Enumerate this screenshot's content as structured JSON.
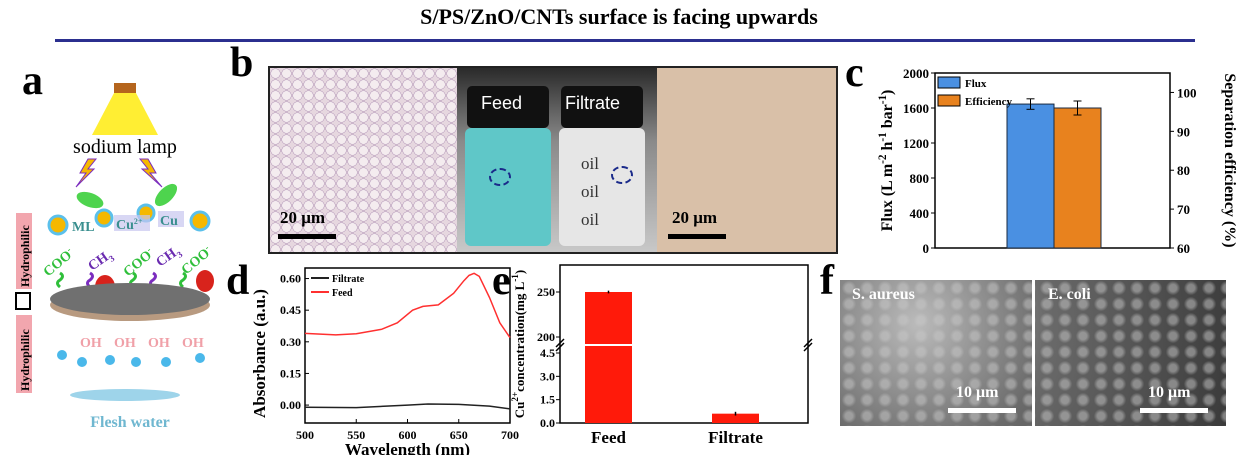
{
  "title": "S/PS/ZnO/CNTs surface is facing upwards",
  "panels": {
    "a": "a",
    "b": "b",
    "c": "c",
    "d": "d",
    "e": "e",
    "f": "f"
  },
  "panel_a": {
    "lamp": "sodium lamp",
    "ml": "ML",
    "cu1": "Cu",
    "cu1_sup": "2+",
    "cu2": "Cu",
    "coo": "COO",
    "coo_sup": "-",
    "ch3": "CH",
    "ch3_sub": "3",
    "oh": "OH",
    "hydrophilic": "Hydrophilic",
    "water": "Flesh water",
    "colors": {
      "coo": "#2fbf3a",
      "ch3": "#6a2bb0",
      "oh": "#f0a0a8",
      "water": "#6fb7d0"
    }
  },
  "panel_b": {
    "feed": "Feed",
    "filtrate": "Filtrate",
    "scale_left": "20 μm",
    "scale_right": "20 μm",
    "bottle_texts": [
      "oil",
      "oil",
      "oil"
    ]
  },
  "panel_f": {
    "left": "S. aureus",
    "right": "E. coli",
    "scale_left": "10 μm",
    "scale_right": "10 μm"
  },
  "chart_data": [
    {
      "id": "c",
      "type": "bar",
      "categories": [
        ""
      ],
      "series": [
        {
          "name": "Flux",
          "values": [
            1645
          ],
          "error": [
            60
          ],
          "axis": "left",
          "color": "#4a90e2"
        },
        {
          "name": "Efficiency",
          "values": [
            96
          ],
          "error": [
            1.8
          ],
          "axis": "right",
          "color": "#e8821e"
        }
      ],
      "ylabel": "Flux (L m-2 h-1 bar-1)",
      "ylabel_parts": [
        "Flux (L m",
        "-2",
        " h",
        "-1",
        " bar",
        "-1",
        ")"
      ],
      "y2label": "Separation efficiency (%)",
      "ylim": [
        0,
        2000
      ],
      "y2lim": [
        60,
        105
      ],
      "yticks": [
        0,
        400,
        800,
        1200,
        1600,
        2000
      ],
      "y2ticks": [
        60,
        70,
        80,
        90,
        100
      ],
      "legend": "top-left"
    },
    {
      "id": "d",
      "type": "line",
      "xlabel": "Wavelength (nm)",
      "ylabel": "Absorbance (a.u.)",
      "xlim": [
        500,
        700
      ],
      "ylim": [
        -0.085,
        0.65
      ],
      "xticks": [
        500,
        550,
        600,
        650,
        700
      ],
      "yticks": [
        "0.00",
        "0.15",
        "0.30",
        "0.45",
        "0.60"
      ],
      "series": [
        {
          "name": "Filtrate",
          "color": "#222222",
          "x": [
            500,
            550,
            600,
            620,
            650,
            680,
            700
          ],
          "y": [
            -0.01,
            -0.012,
            0.0,
            0.005,
            0.003,
            -0.005,
            -0.018
          ]
        },
        {
          "name": "Feed",
          "color": "#ff3030",
          "x": [
            500,
            530,
            550,
            575,
            590,
            605,
            615,
            630,
            645,
            655,
            660,
            665,
            670,
            680,
            690,
            700
          ],
          "y": [
            0.34,
            0.333,
            0.338,
            0.36,
            0.39,
            0.45,
            0.468,
            0.475,
            0.53,
            0.59,
            0.615,
            0.625,
            0.61,
            0.51,
            0.39,
            0.32
          ]
        }
      ],
      "legend": "top-left"
    },
    {
      "id": "e",
      "type": "bar",
      "categories": [
        "Feed",
        "Filtrate"
      ],
      "values": [
        250,
        0.6
      ],
      "error": [
        1.5,
        0.12
      ],
      "color": "#ff1a0a",
      "ylabel": "Cu2+ concentration(mg L-1)",
      "ylabel_parts": [
        "Cu",
        "2+",
        "concentration(mg L",
        "-1",
        ")"
      ],
      "axis_break": true,
      "ylim_lower": [
        0,
        4.5
      ],
      "ylim_upper": [
        200,
        260
      ],
      "yticks_lower": [
        "0.0",
        "1.5",
        "3.0",
        "4.5"
      ],
      "yticks_upper": [
        "200",
        "250"
      ]
    }
  ]
}
